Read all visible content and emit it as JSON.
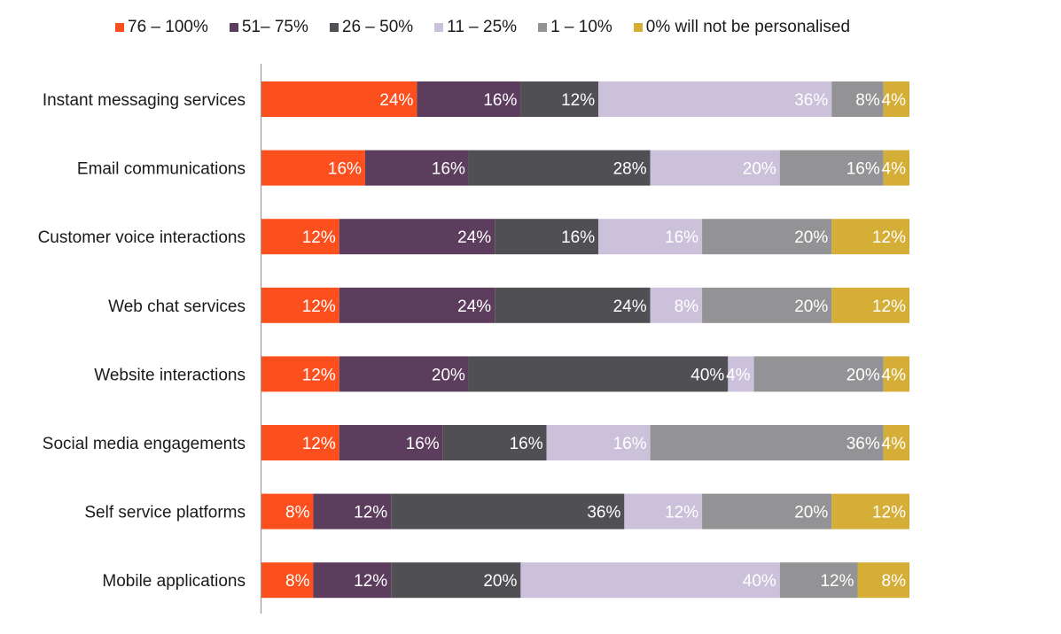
{
  "chart_data": {
    "type": "bar",
    "orientation": "horizontal",
    "stacked": true,
    "title": "",
    "xlabel": "",
    "ylabel": "",
    "xlim": [
      0,
      100
    ],
    "grid": false,
    "legend_position": "top",
    "categories": [
      "Instant messaging services",
      "Email communications",
      "Customer voice interactions",
      "Web chat services",
      "Website interactions",
      "Social media engagements",
      "Self service platforms",
      "Mobile applications"
    ],
    "series": [
      {
        "name": "76 – 100%",
        "color": "#fc4f1e",
        "values": [
          24,
          16,
          12,
          12,
          12,
          12,
          8,
          8
        ]
      },
      {
        "name": "51– 75%",
        "color": "#5c3d5e",
        "values": [
          16,
          16,
          24,
          24,
          20,
          16,
          12,
          12
        ]
      },
      {
        "name": "26 – 50%",
        "color": "#505054",
        "values": [
          12,
          28,
          16,
          24,
          40,
          16,
          36,
          20
        ]
      },
      {
        "name": "11 – 25%",
        "color": "#cbc1da",
        "values": [
          36,
          20,
          16,
          8,
          4,
          16,
          12,
          40
        ]
      },
      {
        "name": "1 – 10%",
        "color": "#939396",
        "values": [
          8,
          16,
          20,
          20,
          20,
          36,
          20,
          12
        ]
      },
      {
        "name": "0% will not be personalised",
        "color": "#d5ae37",
        "values": [
          4,
          4,
          12,
          12,
          4,
          4,
          12,
          8
        ]
      }
    ],
    "value_suffix": "%"
  }
}
